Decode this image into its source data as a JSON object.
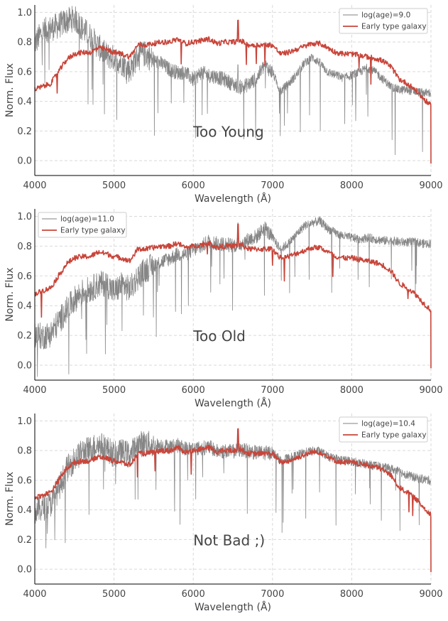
{
  "colors": {
    "model_spectrum": "#808080",
    "galaxy_spectrum": "#c8453a",
    "grid": "#d9d9d9",
    "text": "#444444",
    "axis": "#000000"
  },
  "chart_data": [
    {
      "type": "line",
      "xlabel": "Wavelength (Å)",
      "ylabel": "Norm. Flux",
      "xlim": [
        4000,
        9000
      ],
      "ylim": [
        -0.1,
        1.05
      ],
      "xticks": [
        "4000",
        "5000",
        "6000",
        "7000",
        "8000",
        "9000"
      ],
      "yticks": [
        "0.0",
        "0.2",
        "0.4",
        "0.6",
        "0.8",
        "1.0"
      ],
      "grid": true,
      "legend_position": "top-right",
      "annotation": {
        "text": "Too Young",
        "x": 6000,
        "y": 0.2
      },
      "series": [
        {
          "name": "log(age)=9.0",
          "color": "#808080",
          "x": [
            4000,
            4100,
            4200,
            4300,
            4400,
            4500,
            4600,
            4700,
            4800,
            4900,
            5000,
            5100,
            5200,
            5300,
            5400,
            5500,
            5600,
            5700,
            5800,
            5900,
            6000,
            6100,
            6200,
            6300,
            6400,
            6500,
            6600,
            6700,
            6800,
            6900,
            7000,
            7100,
            7200,
            7300,
            7400,
            7500,
            7600,
            7700,
            7800,
            7900,
            8000,
            8100,
            8200,
            8300,
            8400,
            8500,
            8600,
            8700,
            8800,
            8900,
            9000
          ],
          "y": [
            0.8,
            0.88,
            0.9,
            0.92,
            0.95,
            0.97,
            0.9,
            0.85,
            0.78,
            0.72,
            0.7,
            0.67,
            0.62,
            0.72,
            0.73,
            0.68,
            0.66,
            0.62,
            0.6,
            0.6,
            0.55,
            0.6,
            0.58,
            0.57,
            0.55,
            0.52,
            0.5,
            0.52,
            0.56,
            0.65,
            0.6,
            0.47,
            0.52,
            0.58,
            0.66,
            0.7,
            0.66,
            0.6,
            0.58,
            0.56,
            0.58,
            0.6,
            0.63,
            0.6,
            0.55,
            0.5,
            0.48,
            0.48,
            0.47,
            0.46,
            0.46
          ]
        },
        {
          "name": "Early type galaxy",
          "color": "#c8453a",
          "x": [
            4000,
            4100,
            4200,
            4300,
            4400,
            4500,
            4600,
            4700,
            4800,
            4900,
            5000,
            5100,
            5200,
            5300,
            5400,
            5500,
            5600,
            5700,
            5800,
            5900,
            6000,
            6100,
            6200,
            6300,
            6400,
            6500,
            6600,
            6700,
            6800,
            6900,
            7000,
            7100,
            7200,
            7300,
            7400,
            7500,
            7600,
            7700,
            7800,
            7900,
            8000,
            8100,
            8200,
            8300,
            8400,
            8500,
            8600,
            8700,
            8800,
            8900,
            9000
          ],
          "y": [
            0.48,
            0.5,
            0.52,
            0.6,
            0.68,
            0.72,
            0.73,
            0.73,
            0.76,
            0.75,
            0.73,
            0.72,
            0.7,
            0.78,
            0.78,
            0.79,
            0.8,
            0.8,
            0.82,
            0.79,
            0.8,
            0.81,
            0.82,
            0.79,
            0.8,
            0.8,
            0.81,
            0.78,
            0.78,
            0.78,
            0.78,
            0.72,
            0.73,
            0.75,
            0.77,
            0.79,
            0.79,
            0.76,
            0.73,
            0.72,
            0.72,
            0.71,
            0.7,
            0.69,
            0.67,
            0.63,
            0.55,
            0.52,
            0.48,
            0.42,
            0.37
          ]
        }
      ]
    },
    {
      "type": "line",
      "xlabel": "Wavelength (Å)",
      "ylabel": "Norm. Flux",
      "xlim": [
        4000,
        9000
      ],
      "ylim": [
        -0.1,
        1.05
      ],
      "xticks": [
        "4000",
        "5000",
        "6000",
        "7000",
        "8000",
        "9000"
      ],
      "yticks": [
        "0.0",
        "0.2",
        "0.4",
        "0.6",
        "0.8",
        "1.0"
      ],
      "grid": true,
      "legend_position": "top-left",
      "annotation": {
        "text": "Too Old",
        "x": 6000,
        "y": 0.2
      },
      "series": [
        {
          "name": "log(age)=11.0",
          "color": "#808080",
          "x": [
            4000,
            4100,
            4200,
            4300,
            4400,
            4500,
            4600,
            4700,
            4800,
            4900,
            5000,
            5100,
            5200,
            5300,
            5400,
            5500,
            5600,
            5700,
            5800,
            5900,
            6000,
            6100,
            6200,
            6300,
            6400,
            6500,
            6600,
            6700,
            6800,
            6900,
            7000,
            7100,
            7200,
            7300,
            7400,
            7500,
            7600,
            7700,
            7800,
            7900,
            8000,
            8100,
            8200,
            8300,
            8400,
            8500,
            8600,
            8700,
            8800,
            8900,
            9000
          ],
          "y": [
            0.22,
            0.2,
            0.22,
            0.3,
            0.38,
            0.45,
            0.5,
            0.52,
            0.55,
            0.56,
            0.5,
            0.55,
            0.52,
            0.6,
            0.65,
            0.68,
            0.7,
            0.72,
            0.75,
            0.75,
            0.78,
            0.8,
            0.84,
            0.82,
            0.82,
            0.81,
            0.82,
            0.85,
            0.87,
            0.93,
            0.86,
            0.78,
            0.82,
            0.88,
            0.94,
            0.96,
            0.97,
            0.92,
            0.89,
            0.87,
            0.86,
            0.85,
            0.86,
            0.85,
            0.84,
            0.84,
            0.83,
            0.83,
            0.83,
            0.82,
            0.82
          ]
        },
        {
          "name": "Early type galaxy",
          "color": "#c8453a",
          "x": [
            4000,
            4100,
            4200,
            4300,
            4400,
            4500,
            4600,
            4700,
            4800,
            4900,
            5000,
            5100,
            5200,
            5300,
            5400,
            5500,
            5600,
            5700,
            5800,
            5900,
            6000,
            6100,
            6200,
            6300,
            6400,
            6500,
            6600,
            6700,
            6800,
            6900,
            7000,
            7100,
            7200,
            7300,
            7400,
            7500,
            7600,
            7700,
            7800,
            7900,
            8000,
            8100,
            8200,
            8300,
            8400,
            8500,
            8600,
            8700,
            8800,
            8900,
            9000
          ],
          "y": [
            0.48,
            0.5,
            0.52,
            0.6,
            0.68,
            0.72,
            0.73,
            0.73,
            0.76,
            0.75,
            0.73,
            0.72,
            0.7,
            0.78,
            0.78,
            0.79,
            0.8,
            0.8,
            0.82,
            0.79,
            0.8,
            0.81,
            0.82,
            0.79,
            0.8,
            0.8,
            0.81,
            0.78,
            0.78,
            0.78,
            0.78,
            0.72,
            0.73,
            0.75,
            0.77,
            0.79,
            0.79,
            0.76,
            0.73,
            0.72,
            0.72,
            0.71,
            0.7,
            0.69,
            0.67,
            0.63,
            0.55,
            0.52,
            0.48,
            0.42,
            0.37
          ]
        }
      ]
    },
    {
      "type": "line",
      "xlabel": "Wavelength (Å)",
      "ylabel": "Norm. Flux",
      "xlim": [
        4000,
        9000
      ],
      "ylim": [
        -0.1,
        1.05
      ],
      "xticks": [
        "4000",
        "5000",
        "6000",
        "7000",
        "8000",
        "9000"
      ],
      "yticks": [
        "0.0",
        "0.2",
        "0.4",
        "0.6",
        "0.8",
        "1.0"
      ],
      "grid": true,
      "legend_position": "top-right",
      "annotation": {
        "text": "Not Bad ;)",
        "x": 6000,
        "y": 0.2
      },
      "series": [
        {
          "name": "log(age)=10.4",
          "color": "#808080",
          "x": [
            4000,
            4100,
            4200,
            4300,
            4400,
            4500,
            4600,
            4700,
            4800,
            4900,
            5000,
            5100,
            5200,
            5300,
            5400,
            5500,
            5600,
            5700,
            5800,
            5900,
            6000,
            6100,
            6200,
            6300,
            6400,
            6500,
            6600,
            6700,
            6800,
            6900,
            7000,
            7100,
            7200,
            7300,
            7400,
            7500,
            7600,
            7700,
            7800,
            7900,
            8000,
            8100,
            8200,
            8300,
            8400,
            8500,
            8600,
            8700,
            8800,
            8900,
            9000
          ],
          "y": [
            0.4,
            0.42,
            0.45,
            0.55,
            0.68,
            0.75,
            0.8,
            0.82,
            0.85,
            0.83,
            0.78,
            0.8,
            0.78,
            0.85,
            0.86,
            0.84,
            0.84,
            0.83,
            0.84,
            0.82,
            0.82,
            0.82,
            0.83,
            0.8,
            0.8,
            0.8,
            0.81,
            0.8,
            0.79,
            0.79,
            0.79,
            0.74,
            0.75,
            0.77,
            0.79,
            0.8,
            0.8,
            0.76,
            0.75,
            0.74,
            0.73,
            0.72,
            0.71,
            0.7,
            0.69,
            0.68,
            0.66,
            0.64,
            0.62,
            0.61,
            0.6
          ]
        },
        {
          "name": "Early type galaxy",
          "color": "#c8453a",
          "x": [
            4000,
            4100,
            4200,
            4300,
            4400,
            4500,
            4600,
            4700,
            4800,
            4900,
            5000,
            5100,
            5200,
            5300,
            5400,
            5500,
            5600,
            5700,
            5800,
            5900,
            6000,
            6100,
            6200,
            6300,
            6400,
            6500,
            6600,
            6700,
            6800,
            6900,
            7000,
            7100,
            7200,
            7300,
            7400,
            7500,
            7600,
            7700,
            7800,
            7900,
            8000,
            8100,
            8200,
            8300,
            8400,
            8500,
            8600,
            8700,
            8800,
            8900,
            9000
          ],
          "y": [
            0.48,
            0.5,
            0.52,
            0.6,
            0.68,
            0.72,
            0.73,
            0.73,
            0.76,
            0.75,
            0.73,
            0.72,
            0.7,
            0.78,
            0.78,
            0.79,
            0.8,
            0.8,
            0.82,
            0.79,
            0.8,
            0.81,
            0.82,
            0.79,
            0.8,
            0.8,
            0.81,
            0.78,
            0.78,
            0.78,
            0.78,
            0.72,
            0.73,
            0.75,
            0.77,
            0.79,
            0.79,
            0.76,
            0.73,
            0.72,
            0.72,
            0.71,
            0.7,
            0.69,
            0.67,
            0.63,
            0.55,
            0.52,
            0.48,
            0.42,
            0.37
          ]
        }
      ]
    }
  ]
}
